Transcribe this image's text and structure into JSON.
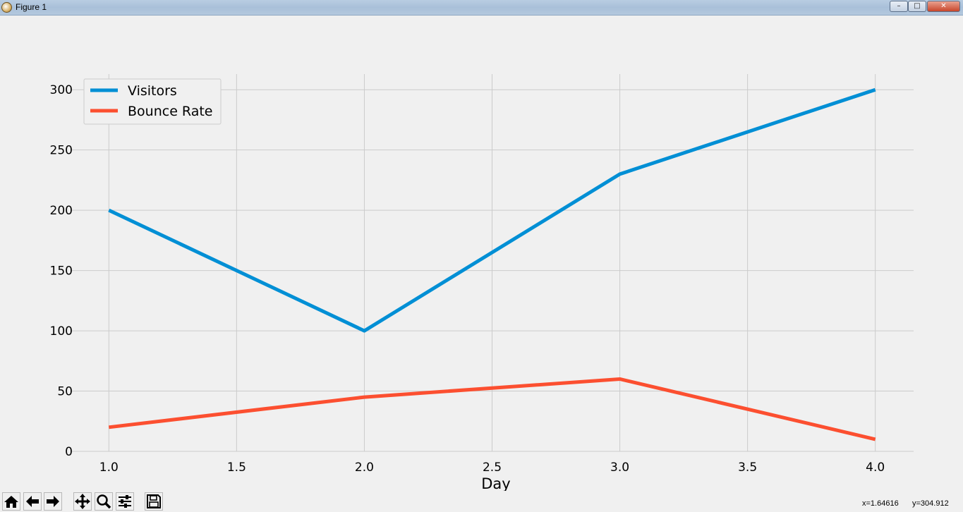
{
  "window": {
    "title": "Figure 1",
    "minimize_label": "–",
    "maximize_label": "□",
    "close_label": "✕"
  },
  "chart_data": {
    "type": "line",
    "x": [
      1.0,
      2.0,
      3.0,
      4.0
    ],
    "series": [
      {
        "name": "Visitors",
        "values": [
          200,
          100,
          230,
          300
        ],
        "color": "#008fd5"
      },
      {
        "name": "Bounce Rate",
        "values": [
          20,
          45,
          60,
          10
        ],
        "color": "#fc4f30"
      }
    ],
    "xlabel": "Day",
    "ylabel": "",
    "xlim": [
      0.85,
      4.15
    ],
    "ylim": [
      0,
      313
    ],
    "xticks": [
      1.0,
      1.5,
      2.0,
      2.5,
      3.0,
      3.5,
      4.0
    ],
    "xtick_labels": [
      "1.0",
      "1.5",
      "2.0",
      "2.5",
      "3.0",
      "3.5",
      "4.0"
    ],
    "yticks": [
      0,
      50,
      100,
      150,
      200,
      250,
      300
    ],
    "ytick_labels": [
      "0",
      "50",
      "100",
      "150",
      "200",
      "250",
      "300"
    ],
    "grid": true,
    "legend": "top-left"
  },
  "toolbar": {
    "buttons": [
      {
        "icon": "home-icon"
      },
      {
        "icon": "back-arrow-icon"
      },
      {
        "icon": "forward-arrow-icon"
      },
      {
        "icon": "pan-icon"
      },
      {
        "icon": "zoom-icon"
      },
      {
        "icon": "subplots-icon"
      },
      {
        "icon": "save-icon"
      }
    ],
    "coords": {
      "x": "x=1.64616",
      "y": "y=304.912"
    }
  }
}
